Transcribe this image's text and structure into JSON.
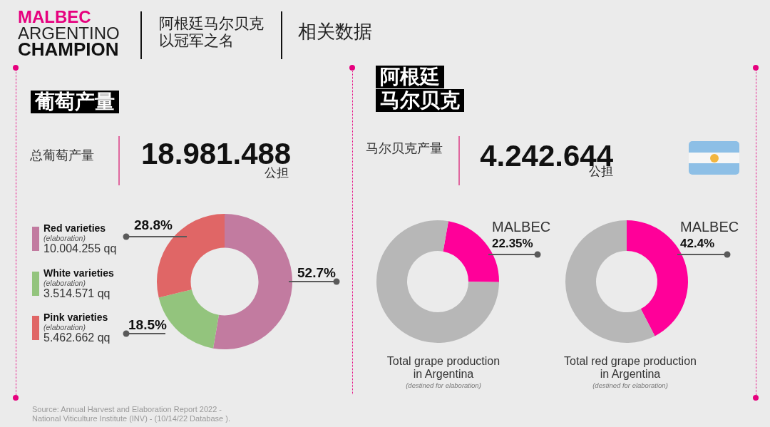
{
  "chart_data": [
    {
      "type": "other",
      "title": "MALBEC ARGENTINO CHAMPION",
      "subtitle": "阿根廷马尔贝克以冠军之名",
      "annotations": [
        "相关数据"
      ]
    },
    {
      "type": "donut",
      "title": "葡萄产量",
      "categories": [
        "Red varieties\n(elaboration)\n10.004.255 qq",
        "White varieties\n(elaboration)\n3.514.571 qq",
        "Pink varieties\n(elaboration)\n5.462.662 qq"
      ],
      "values": [
        52.7,
        18.5,
        28.8
      ],
      "value_labels": [
        "52.7%",
        "18.5%",
        "28.8%"
      ],
      "colors": [
        "#c27ba0",
        "#93c47d",
        "#e06666"
      ],
      "legend": "left",
      "annotations": [
        "总葡萄产量",
        "18.981.488",
        "公担",
        "Source: Annual Harvest and Elaboration Report 2022 - National Viticulture Institute (INV) - (10/14/22 Database )."
      ]
    },
    {
      "type": "donut",
      "title": "阿根廷",
      "subtitle": "马尔贝克",
      "categories": [
        "MALBEC",
        null
      ],
      "values": [
        22.35,
        77.65
      ],
      "value_labels": [
        "22.35%",
        null
      ],
      "colors": [
        "#ff0099",
        "#b7b7b7"
      ],
      "annotations": [
        "马尔贝克产量",
        "4.242.644",
        "公担",
        "Total grape production in Argentina",
        "(destined for elaboration)"
      ]
    },
    {
      "type": "donut",
      "categories": [
        "MALBEC",
        null
      ],
      "values": [
        42.4,
        57.6
      ],
      "value_labels": [
        "42.4%",
        null
      ],
      "colors": [
        "#ff0099",
        "#b7b7b7"
      ],
      "annotations": [
        "Total red grape production in Argentina",
        "(destined for elaboration)"
      ]
    }
  ]
}
